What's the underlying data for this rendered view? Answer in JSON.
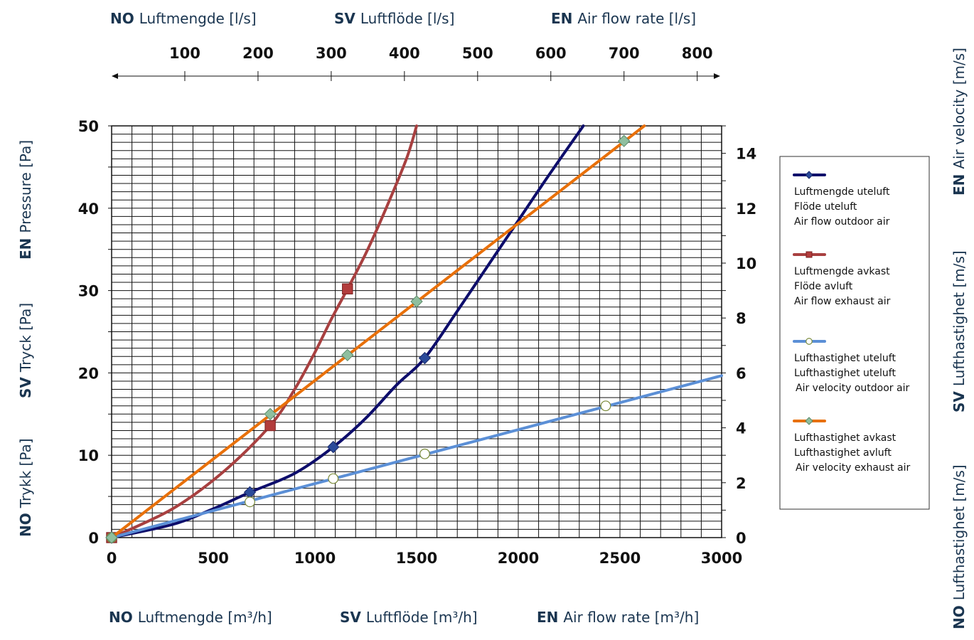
{
  "chart_data": {
    "type": "line",
    "x_axis": {
      "unit_labels": [
        {
          "lang": "NO",
          "text": "Luftmengde [m³/h]"
        },
        {
          "lang": "SV",
          "text": "Luftflöde [m³/h]"
        },
        {
          "lang": "EN",
          "text": "Air flow rate [m³/h]"
        }
      ],
      "min": 0,
      "max": 3000,
      "ticks": [
        "0",
        "500",
        "1000",
        "1500",
        "2000",
        "2500",
        "3000"
      ]
    },
    "x_top_axis": {
      "unit_labels": [
        {
          "lang": "NO",
          "text": "Luftmengde [l/s]"
        },
        {
          "lang": "SV",
          "text": "Luftflöde [l/s]"
        },
        {
          "lang": "EN",
          "text": "Air flow rate [l/s]"
        }
      ],
      "ticks": [
        "100",
        "200",
        "300",
        "400",
        "500",
        "600",
        "700",
        "800"
      ]
    },
    "y_axis": {
      "unit_labels": [
        {
          "lang": "NO",
          "text": "Trykk [Pa]"
        },
        {
          "lang": "SV",
          "text": "Tryck [Pa]"
        },
        {
          "lang": "EN",
          "text": "Pressure [Pa]"
        }
      ],
      "min": 0,
      "max": 50,
      "ticks": [
        "0",
        "10",
        "20",
        "30",
        "40",
        "50"
      ]
    },
    "y2_axis": {
      "unit_labels": [
        {
          "lang": "NO",
          "text": "Lufthastighet [m/s]"
        },
        {
          "lang": "SV",
          "text": "Lufthastighet [m/s]"
        },
        {
          "lang": "EN",
          "text": "Air velocity [m/s]"
        }
      ],
      "min": 0,
      "max": 15,
      "ticks": [
        "0",
        "2",
        "4",
        "6",
        "8",
        "10",
        "12",
        "14"
      ]
    },
    "grid": true,
    "legend_placement": "right",
    "series": [
      {
        "names": [
          "Luftmengde uteluft",
          "Flöde uteluft",
          "Air flow outdoor air"
        ],
        "color": "#0d0d6b",
        "marker": "diamond",
        "axis": "left",
        "curve": [
          [
            0,
            0
          ],
          [
            300,
            1.6
          ],
          [
            500,
            3.5
          ],
          [
            680,
            5.5
          ],
          [
            900,
            7.8
          ],
          [
            1090,
            11
          ],
          [
            1250,
            14.5
          ],
          [
            1400,
            18.5
          ],
          [
            1540,
            21.8
          ],
          [
            1700,
            27.5
          ],
          [
            1850,
            33
          ],
          [
            2000,
            38.5
          ],
          [
            2150,
            44
          ],
          [
            2320,
            50
          ]
        ],
        "points": [
          [
            0,
            0
          ],
          [
            680,
            5.5
          ],
          [
            1090,
            11
          ],
          [
            1540,
            21.8
          ]
        ]
      },
      {
        "names": [
          "Luftmengde avkast",
          "Flöde avluft",
          "Air flow exhaust air"
        ],
        "color": "#a84040",
        "marker": "square",
        "axis": "left",
        "curve": [
          [
            0,
            0
          ],
          [
            300,
            3.5
          ],
          [
            550,
            8
          ],
          [
            780,
            13.6
          ],
          [
            900,
            18
          ],
          [
            1000,
            22.5
          ],
          [
            1080,
            26.5
          ],
          [
            1160,
            30.2
          ],
          [
            1250,
            34.5
          ],
          [
            1350,
            40
          ],
          [
            1450,
            46
          ],
          [
            1500,
            50
          ]
        ],
        "points": [
          [
            0,
            0
          ],
          [
            780,
            13.6
          ],
          [
            1160,
            30.2
          ]
        ]
      },
      {
        "names": [
          "Lufthastighet uteluft",
          "Lufthastighet uteluft",
          "Air velocity outdoor air"
        ],
        "color": "#5b8fd6",
        "marker": "circle",
        "axis": "right",
        "curve": [
          [
            0,
            0
          ],
          [
            3000,
            5.9
          ]
        ],
        "points": [
          [
            0,
            0
          ],
          [
            680,
            1.3
          ],
          [
            1090,
            2.15
          ],
          [
            1540,
            3.05
          ],
          [
            2430,
            4.8
          ]
        ]
      },
      {
        "names": [
          "Lufthastighet avkast",
          "Lufthastighet avluft",
          "Air velocity exhaust air"
        ],
        "color": "#e8700a",
        "marker": "diamond",
        "axis": "right",
        "curve": [
          [
            0,
            0
          ],
          [
            2620,
            15
          ]
        ],
        "points": [
          [
            0,
            0
          ],
          [
            780,
            4.5
          ],
          [
            1160,
            6.65
          ],
          [
            1500,
            8.6
          ],
          [
            2520,
            14.45
          ]
        ]
      }
    ]
  }
}
